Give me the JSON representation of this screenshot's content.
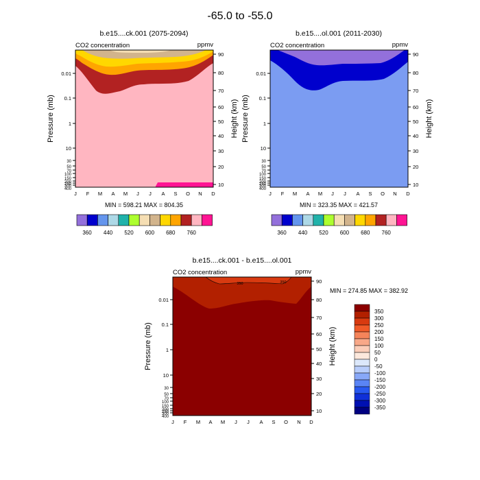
{
  "page_title": "-65.0 to -55.0",
  "chart_data": [
    {
      "type": "contour",
      "title": "b.e15....ck.001 (2075-2094)",
      "left_label": "CO2 concentration",
      "right_label": "ppmv",
      "xlabel": "",
      "ylabel": "Pressure (mb)",
      "ylabel_right": "Height (km)",
      "x_ticks": [
        "J",
        "F",
        "M",
        "A",
        "M",
        "J",
        "J",
        "A",
        "S",
        "O",
        "N",
        "D"
      ],
      "y_ticks_left": [
        "0.01",
        "0.1",
        "1",
        "10",
        "30",
        "50",
        "70",
        "100",
        "150",
        "200",
        "250",
        "300",
        "400"
      ],
      "y_ticks_right": [
        "90",
        "80",
        "70",
        "60",
        "50",
        "40",
        "30",
        "20",
        "10"
      ],
      "stats": "MIN = 598.21  MAX = 804.35",
      "min": 598.21,
      "max": 804.35
    },
    {
      "type": "contour",
      "title": "b.e15....ol.001 (2011-2030)",
      "left_label": "CO2 concentration",
      "right_label": "ppmv",
      "xlabel": "",
      "ylabel": "Pressure (mb)",
      "ylabel_right": "Height (km)",
      "x_ticks": [
        "J",
        "F",
        "M",
        "A",
        "M",
        "J",
        "J",
        "A",
        "S",
        "O",
        "N",
        "D"
      ],
      "y_ticks_left": [
        "0.01",
        "0.1",
        "1",
        "10",
        "30",
        "50",
        "70",
        "100",
        "150",
        "200",
        "250",
        "300",
        "400"
      ],
      "y_ticks_right": [
        "90",
        "80",
        "70",
        "60",
        "50",
        "40",
        "30",
        "20",
        "10"
      ],
      "stats": "MIN = 323.35  MAX = 421.57",
      "min": 323.35,
      "max": 421.57
    },
    {
      "type": "contour",
      "title": "b.e15....ck.001 - b.e15....ol.001",
      "left_label": "CO2 concentration",
      "right_label": "ppmv",
      "xlabel": "",
      "ylabel": "Pressure (mb)",
      "ylabel_right": "Height (km)",
      "x_ticks": [
        "J",
        "F",
        "M",
        "A",
        "M",
        "J",
        "J",
        "A",
        "S",
        "O",
        "N",
        "D"
      ],
      "y_ticks_left": [
        "0.01",
        "0.1",
        "1",
        "10",
        "30",
        "50",
        "70",
        "100",
        "150",
        "200",
        "250",
        "300",
        "400"
      ],
      "y_ticks_right": [
        "90",
        "80",
        "70",
        "60",
        "50",
        "40",
        "30",
        "20",
        "10"
      ],
      "stats": "MIN = 274.85  MAX = 382.92",
      "min": 274.85,
      "max": 382.92,
      "contour_labels": [
        "350",
        "350"
      ]
    }
  ],
  "shared_colorbar": {
    "labels": [
      "360",
      "440",
      "520",
      "600",
      "680",
      "760"
    ],
    "colors": [
      "#9370db",
      "#0000cd",
      "#6495ed",
      "#add8e6",
      "#20b2aa",
      "#adff2f",
      "#f5deb3",
      "#d2b48c",
      "#ffd700",
      "#ffa500",
      "#b22222",
      "#ffb6c1",
      "#ff1493"
    ]
  },
  "diff_colorbar": {
    "labels": [
      "350",
      "300",
      "250",
      "200",
      "150",
      "100",
      "50",
      "0",
      "-50",
      "-100",
      "-150",
      "-200",
      "-250",
      "-300",
      "-350"
    ],
    "colors": [
      "#8b0000",
      "#b22000",
      "#d83a10",
      "#f05a28",
      "#f5845a",
      "#f8a888",
      "#fbcdb8",
      "#fde8dc",
      "#dce8fb",
      "#b8cdfb",
      "#88a8f8",
      "#5a84f5",
      "#2858f0",
      "#1030d8",
      "#0010b2",
      "#000080"
    ]
  },
  "colors": {
    "pink_background": "#ffb6c1",
    "hotpink_patch": "#ff1493",
    "firebrick": "#b22222",
    "orange": "#ffa500",
    "gold": "#ffd700",
    "tan": "#d2b48c",
    "cornflower": "#7b9cf2",
    "mediumblue": "#0000cd",
    "purple": "#9370db",
    "dark_red": "#8b0000",
    "red2": "#b22000",
    "red3": "#d83a10"
  }
}
